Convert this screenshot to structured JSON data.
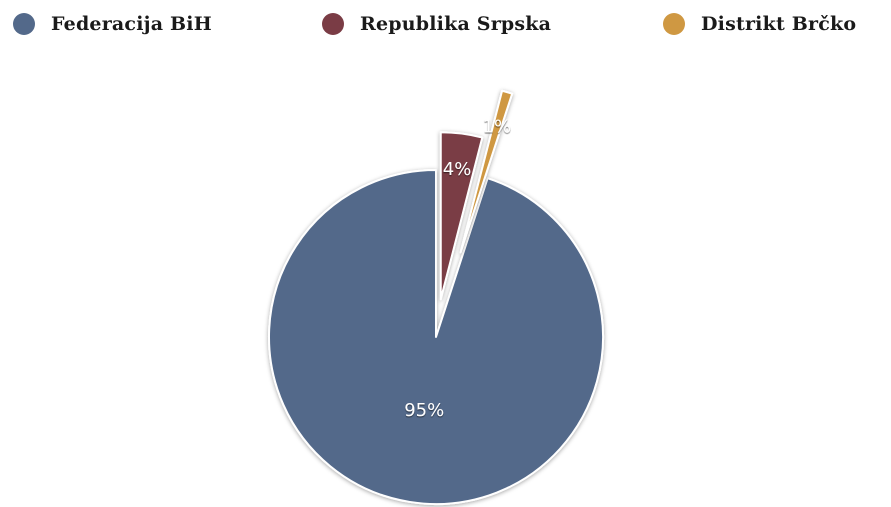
{
  "chart_data": {
    "type": "pie",
    "categories": [
      "Federacija BiH",
      "Republika Srpska",
      "Distrikt Brčko"
    ],
    "values": [
      95,
      4,
      1
    ],
    "data_labels": [
      "95%",
      "4%",
      "1%"
    ],
    "colors": [
      "#53698a",
      "#7a3c45",
      "#cf9842"
    ],
    "legend_position": "top",
    "exploded_slices": [
      "Republika Srpska",
      "Distrikt Brčko"
    ]
  }
}
